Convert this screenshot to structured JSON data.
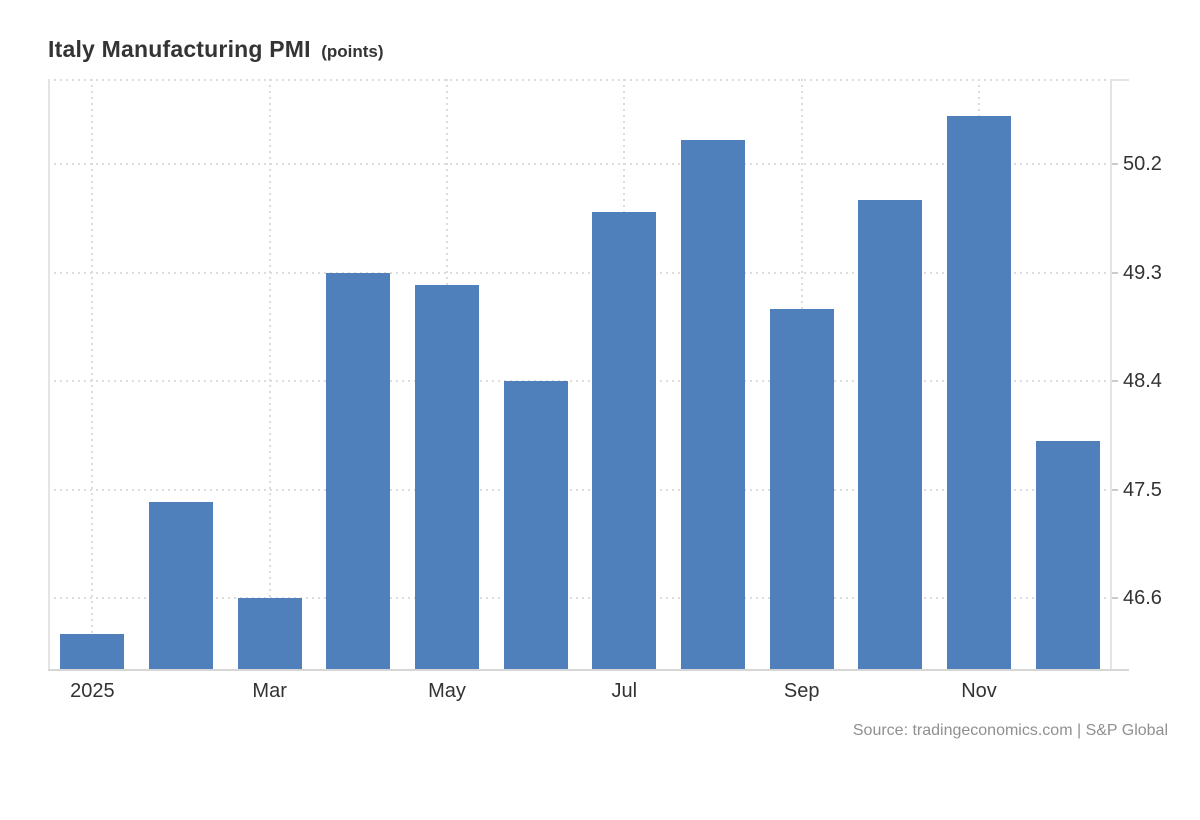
{
  "header": {
    "title": "Italy Manufacturing PMI",
    "title_suffix": "(points)"
  },
  "footer": {
    "source": "Source: tradingeconomics.com | S&P Global"
  },
  "chart_data": {
    "type": "bar",
    "title": "Italy Manufacturing PMI",
    "subtitle": "(points)",
    "categories": [
      "Jan 2025",
      "Feb 2025",
      "Mar 2025",
      "Apr 2025",
      "May 2025",
      "Jun 2025",
      "Jul 2025",
      "Aug 2025",
      "Sep 2025",
      "Oct 2025",
      "Nov 2025",
      "Dec 2025"
    ],
    "values": [
      46.3,
      47.4,
      46.6,
      49.3,
      49.2,
      48.4,
      49.8,
      50.4,
      49.0,
      49.9,
      50.6,
      47.9
    ],
    "x_tick_labels": [
      {
        "index": 0,
        "label": "2025"
      },
      {
        "index": 2,
        "label": "Mar"
      },
      {
        "index": 4,
        "label": "May"
      },
      {
        "index": 6,
        "label": "Jul"
      },
      {
        "index": 8,
        "label": "Sep"
      },
      {
        "index": 10,
        "label": "Nov"
      }
    ],
    "y_ticks": [
      "50.2",
      "49.3",
      "48.4",
      "47.5",
      "46.6"
    ],
    "y_tick_values": [
      50.2,
      49.3,
      48.4,
      47.5,
      46.6
    ],
    "ylim": [
      46.0,
      50.9
    ],
    "xlabel": "",
    "ylabel": "",
    "legend_position": "none",
    "grid": "dotted",
    "bar_color": "#4f80bc",
    "source": "Source: tradingeconomics.com | S&P Global"
  }
}
